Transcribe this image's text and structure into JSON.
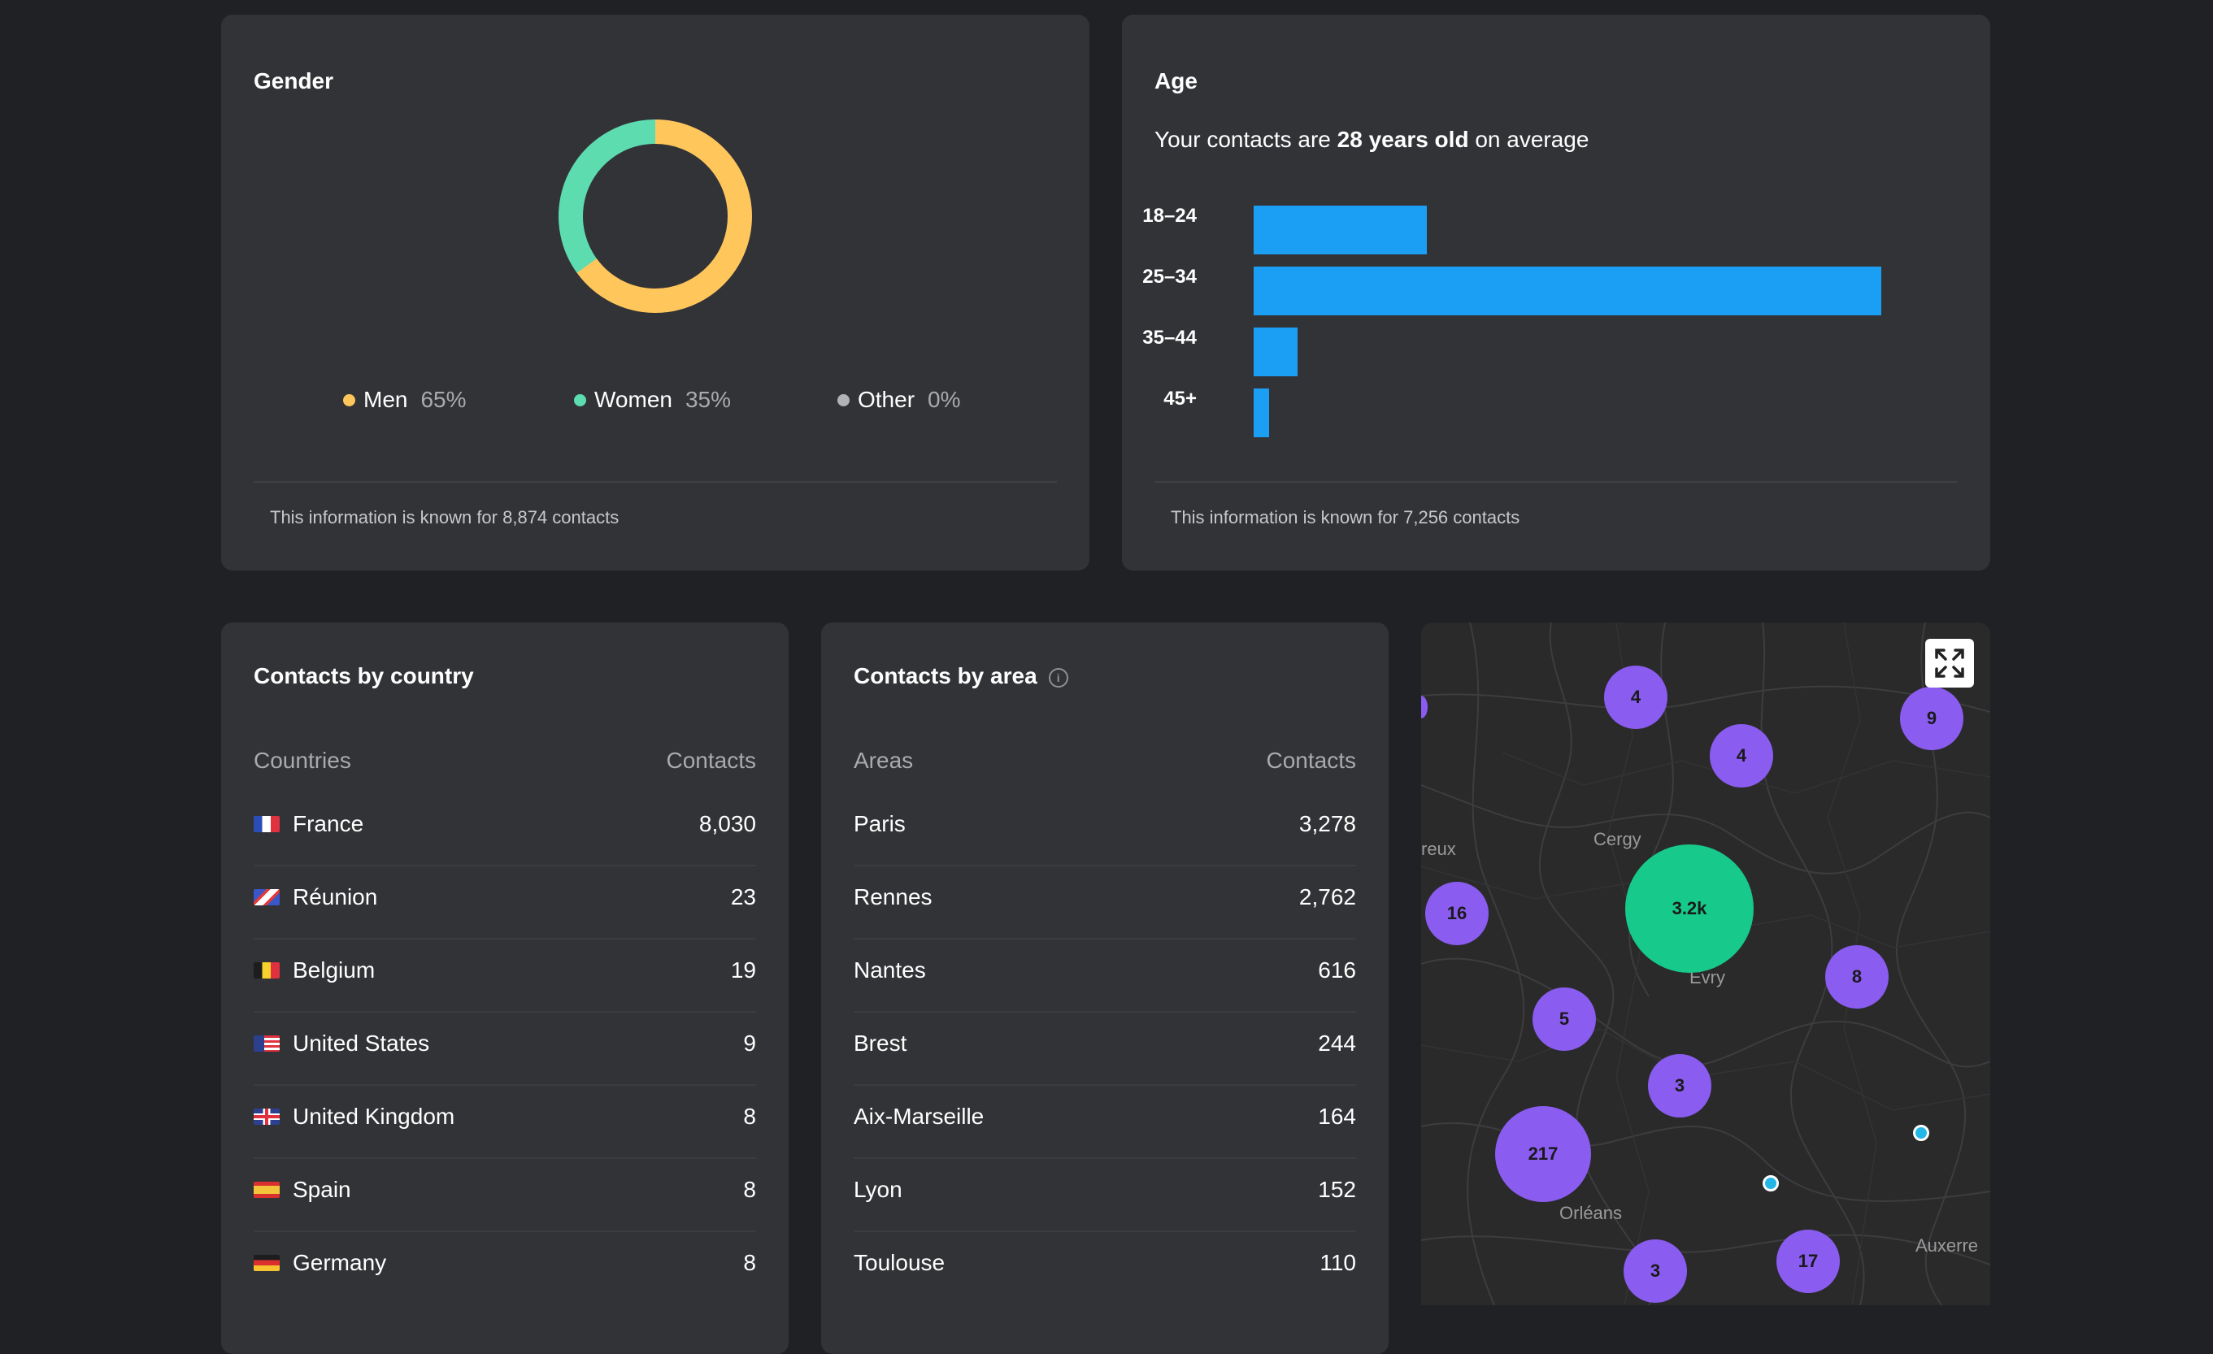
{
  "gender": {
    "title": "Gender",
    "segments": [
      {
        "name": "Men",
        "percent": 65,
        "percent_label": "65%",
        "color": "#ffc65c"
      },
      {
        "name": "Women",
        "percent": 35,
        "percent_label": "35%",
        "color": "#5ddcb0"
      },
      {
        "name": "Other",
        "percent": 0,
        "percent_label": "0%",
        "color": "#b3b3b6"
      }
    ],
    "footer": "This information is known for 8,874 contacts"
  },
  "age": {
    "title": "Age",
    "subtitle_prefix": "Your contacts are",
    "subtitle_bold": "28 years old",
    "subtitle_suffix": "on average",
    "footer": "This information is known for 7,256 contacts",
    "chart_data": {
      "type": "bar",
      "orientation": "horizontal",
      "categories": [
        "18–24",
        "25–34",
        "35–44",
        "45+"
      ],
      "values": [
        27.6,
        100,
        7,
        2.4
      ],
      "unit": "relative share",
      "color": "#1b9ff5",
      "title": "Age"
    }
  },
  "country": {
    "title": "Contacts by country",
    "col_name": "Countries",
    "col_value": "Contacts",
    "rows": [
      {
        "name": "France",
        "value": "8,030",
        "flag": "fr"
      },
      {
        "name": "Réunion",
        "value": "23",
        "flag": "re"
      },
      {
        "name": "Belgium",
        "value": "19",
        "flag": "be"
      },
      {
        "name": "United States",
        "value": "9",
        "flag": "us"
      },
      {
        "name": "United Kingdom",
        "value": "8",
        "flag": "gb"
      },
      {
        "name": "Spain",
        "value": "8",
        "flag": "es"
      },
      {
        "name": "Germany",
        "value": "8",
        "flag": "de"
      }
    ]
  },
  "area": {
    "title": "Contacts by area",
    "col_name": "Areas",
    "col_value": "Contacts",
    "rows": [
      {
        "name": "Paris",
        "value": "3,278"
      },
      {
        "name": "Rennes",
        "value": "2,762"
      },
      {
        "name": "Nantes",
        "value": "616"
      },
      {
        "name": "Brest",
        "value": "244"
      },
      {
        "name": "Aix-Marseille",
        "value": "164"
      },
      {
        "name": "Lyon",
        "value": "152"
      },
      {
        "name": "Toulouse",
        "value": "110"
      }
    ]
  },
  "map": {
    "clusters": [
      {
        "label": "4",
        "kind": "purple"
      },
      {
        "label": "4",
        "kind": "purple"
      },
      {
        "label": "9",
        "kind": "purple"
      },
      {
        "label": "16",
        "kind": "purple"
      },
      {
        "label": "3.2k",
        "kind": "green"
      },
      {
        "label": "8",
        "kind": "purple"
      },
      {
        "label": "5",
        "kind": "purple"
      },
      {
        "label": "3",
        "kind": "purple"
      },
      {
        "label": "217",
        "kind": "purple"
      },
      {
        "label": "3",
        "kind": "purple"
      },
      {
        "label": "17",
        "kind": "purple"
      }
    ],
    "cities": [
      "reux",
      "Cergy",
      "Evry",
      "Orléans",
      "Auxerre"
    ],
    "fullscreen_icon": "fullscreen-icon"
  }
}
